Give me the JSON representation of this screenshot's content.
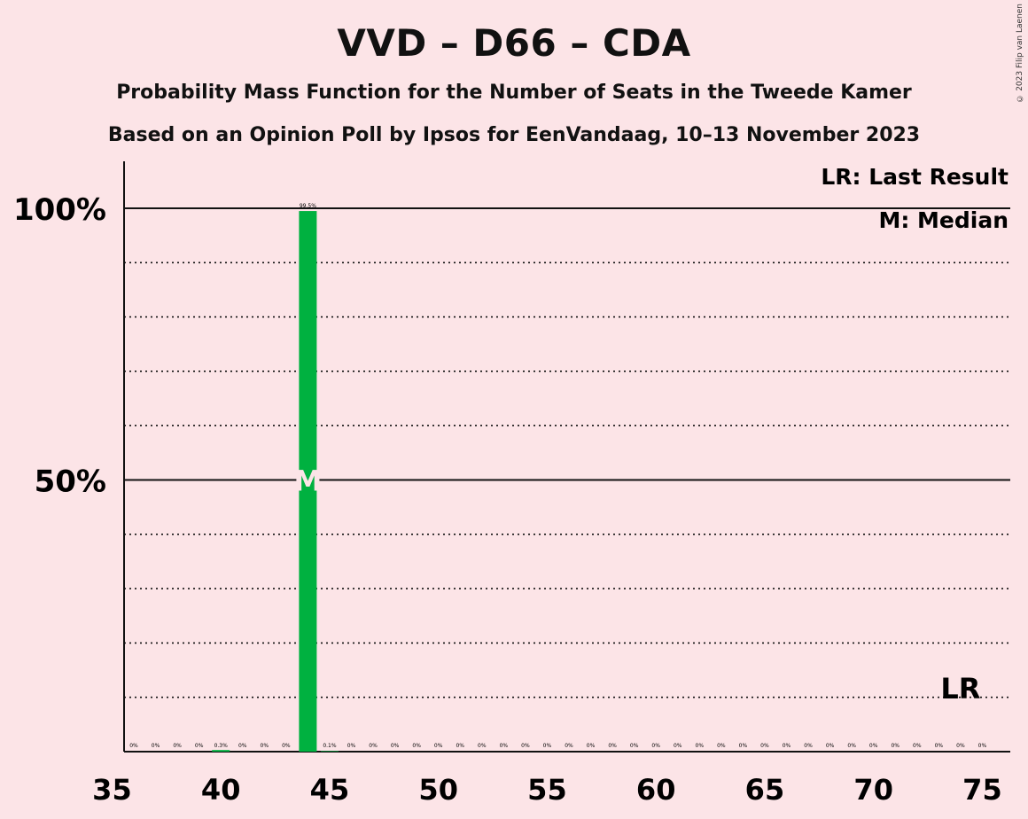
{
  "title": "VVD – D66 – CDA",
  "subtitle1": "Probability Mass Function for the Number of Seats in the Tweede Kamer",
  "subtitle2": "Based on an Opinion Poll by Ipsos for EenVandaag, 10–13 November 2023",
  "copyright": "© 2023 Filip van Laenen",
  "chart_data": {
    "type": "bar",
    "x": [
      36,
      37,
      38,
      39,
      40,
      41,
      42,
      43,
      44,
      45,
      46,
      47,
      48,
      49,
      50,
      51,
      52,
      53,
      54,
      55,
      56,
      57,
      58,
      59,
      60,
      61,
      62,
      63,
      64,
      65,
      66,
      67,
      68,
      69,
      70,
      71,
      72,
      73,
      74,
      75
    ],
    "values": [
      0,
      0,
      0,
      0,
      0.3,
      0,
      0,
      0,
      99.5,
      0.1,
      0,
      0,
      0,
      0,
      0,
      0,
      0,
      0,
      0,
      0,
      0,
      0,
      0,
      0,
      0,
      0,
      0,
      0,
      0,
      0,
      0,
      0,
      0,
      0,
      0,
      0,
      0,
      0,
      0,
      0
    ],
    "labels": [
      "0%",
      "0%",
      "0%",
      "0%",
      "0.3%",
      "0%",
      "0%",
      "0%",
      "99.5%",
      "0.1%",
      "0%",
      "0%",
      "0%",
      "0%",
      "0%",
      "0%",
      "0%",
      "0%",
      "0%",
      "0%",
      "0%",
      "0%",
      "0%",
      "0%",
      "0%",
      "0%",
      "0%",
      "0%",
      "0%",
      "0%",
      "0%",
      "0%",
      "0%",
      "0%",
      "0%",
      "0%",
      "0%",
      "0%",
      "0%",
      "0%"
    ],
    "xlim": [
      35,
      75
    ],
    "ylim": [
      0,
      100
    ],
    "x_ticks": [
      "35",
      "40",
      "45",
      "50",
      "55",
      "60",
      "65",
      "70",
      "75"
    ],
    "y_ticks": [
      "50%",
      "100%"
    ],
    "median_seats": 44,
    "median_marker": "M",
    "last_result_seats": 74,
    "last_result_marker": "LR",
    "legend": [
      "LR: Last Result",
      "M: Median"
    ],
    "legend_position": "top-right",
    "bar_color": "#00b140",
    "grid": "dotted every 10%"
  }
}
